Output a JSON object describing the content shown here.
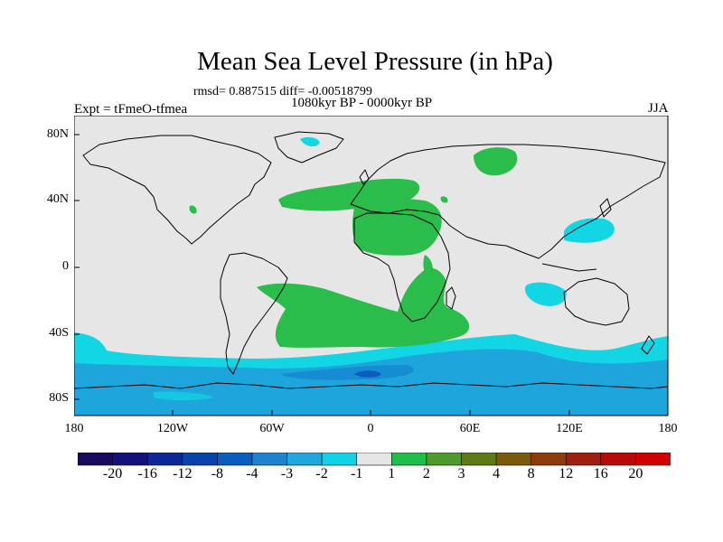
{
  "title": "Mean Sea Level Pressure (in hPa)",
  "stats": "rmsd= 0.887515 diff= -0.00518799",
  "period": "1080kyr BP - 0000kyr BP",
  "experiment": "Expt = tFmeO-tfmea",
  "season": "JJA",
  "lat_ticks": [
    "80N",
    "40N",
    "0",
    "40S",
    "80S"
  ],
  "lon_ticks": [
    "180",
    "120W",
    "60W",
    "0",
    "60E",
    "120E",
    "180"
  ],
  "colorbar": {
    "labels": [
      "-20",
      "-16",
      "-12",
      "-8",
      "-4",
      "-3",
      "-2",
      "-1",
      "1",
      "2",
      "3",
      "4",
      "8",
      "12",
      "16",
      "20"
    ],
    "colors": [
      "#1a0a5e",
      "#14127a",
      "#0c2896",
      "#0842aa",
      "#0a5cbf",
      "#1f82cf",
      "#20a6dc",
      "#14d2e6",
      "#e6e6e6",
      "#1fbd4a",
      "#4e9a2c",
      "#5f7818",
      "#7a5a0c",
      "#8c3c0c",
      "#9e1e10",
      "#b80a0a",
      "#d00000"
    ]
  },
  "colors": {
    "neutral": "#e6e6e6",
    "pos_weak": "#2bbd4c",
    "neg_weak": "#12d6e4",
    "neg_mid": "#1ea6dc",
    "neg_strong": "#0a5cbf"
  }
}
